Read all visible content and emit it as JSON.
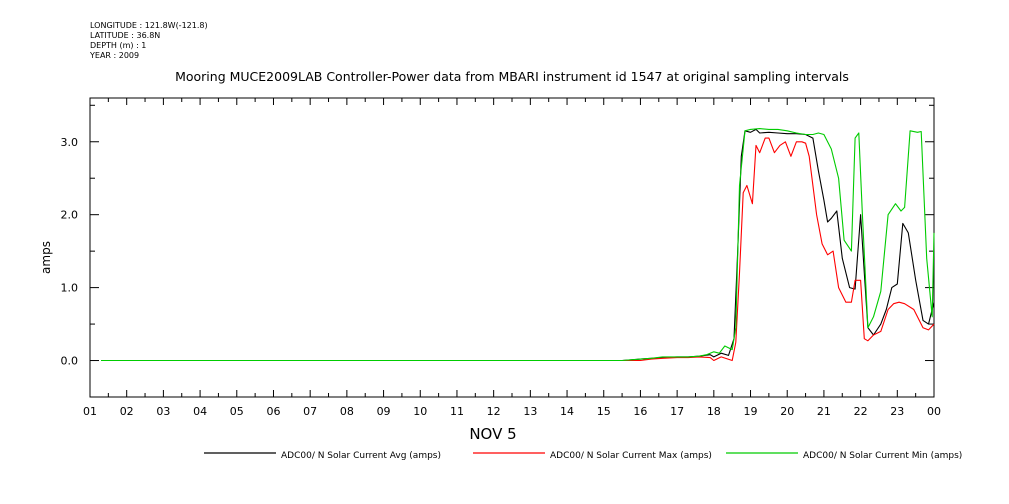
{
  "meta": {
    "longitude": "LONGITUDE : 121.8W(-121.8)",
    "latitude": "LATITUDE : 36.8N",
    "depth": "DEPTH (m) : 1",
    "year": "YEAR : 2009"
  },
  "chart_data": {
    "type": "line",
    "title": "Mooring MUCE2009LAB Controller-Power data from MBARI instrument id 1547 at original sampling intervals",
    "ylabel": "amps",
    "xlabel": "NOV  5",
    "ylim": [
      -0.5,
      3.6
    ],
    "xlim": [
      1,
      24
    ],
    "yticks": [
      0.0,
      1.0,
      2.0,
      3.0
    ],
    "ytick_labels": [
      "0.0",
      "1.0",
      "2.0",
      "3.0"
    ],
    "xtick_labels": [
      "01",
      "02",
      "03",
      "04",
      "05",
      "06",
      "07",
      "08",
      "09",
      "10",
      "11",
      "12",
      "13",
      "14",
      "15",
      "16",
      "17",
      "18",
      "19",
      "20",
      "21",
      "22",
      "23",
      "00"
    ],
    "grid": false,
    "legend_position": "bottom",
    "series": [
      {
        "name": "ADC00/ N Solar Current Avg (amps)",
        "color": "#000000",
        "x": [
          15.5,
          16.0,
          16.3,
          16.6,
          17.0,
          17.3,
          17.6,
          17.9,
          18.0,
          18.2,
          18.4,
          18.55,
          18.65,
          18.75,
          18.85,
          19.0,
          19.15,
          19.25,
          19.5,
          19.75,
          20.0,
          20.25,
          20.5,
          20.7,
          20.85,
          21.0,
          21.1,
          21.2,
          21.35,
          21.5,
          21.7,
          21.85,
          22.0,
          22.1,
          22.2,
          22.35,
          22.55,
          22.7,
          22.85,
          23.0,
          23.15,
          23.3,
          23.5,
          23.7,
          23.85,
          24.0
        ],
        "y": [
          0.0,
          0.02,
          0.03,
          0.04,
          0.05,
          0.05,
          0.06,
          0.08,
          0.05,
          0.1,
          0.07,
          0.3,
          1.5,
          2.8,
          3.15,
          3.13,
          3.17,
          3.12,
          3.13,
          3.12,
          3.11,
          3.11,
          3.1,
          3.05,
          2.6,
          2.2,
          1.9,
          1.95,
          2.05,
          1.4,
          1.0,
          0.98,
          2.0,
          1.2,
          0.45,
          0.35,
          0.5,
          0.7,
          1.0,
          1.05,
          1.88,
          1.75,
          1.1,
          0.55,
          0.5,
          0.8
        ]
      },
      {
        "name": "ADC00/ N Solar Current Max (amps)",
        "color": "#ff0000",
        "x": [
          15.5,
          16.0,
          16.3,
          16.6,
          17.0,
          17.3,
          17.6,
          17.9,
          18.0,
          18.2,
          18.5,
          18.6,
          18.7,
          18.8,
          18.9,
          19.05,
          19.15,
          19.25,
          19.4,
          19.5,
          19.65,
          19.8,
          19.95,
          20.1,
          20.25,
          20.4,
          20.5,
          20.6,
          20.8,
          20.95,
          21.1,
          21.25,
          21.4,
          21.6,
          21.75,
          21.85,
          22.0,
          22.1,
          22.2,
          22.35,
          22.55,
          22.75,
          22.9,
          23.05,
          23.2,
          23.45,
          23.7,
          23.85,
          24.0
        ],
        "y": [
          0.0,
          0.0,
          0.02,
          0.03,
          0.04,
          0.04,
          0.05,
          0.04,
          0.0,
          0.05,
          0.0,
          0.25,
          1.2,
          2.3,
          2.4,
          2.15,
          2.95,
          2.85,
          3.05,
          3.05,
          2.85,
          2.95,
          3.0,
          2.8,
          3.0,
          3.0,
          2.98,
          2.8,
          2.0,
          1.6,
          1.45,
          1.5,
          1.0,
          0.8,
          0.8,
          1.1,
          1.1,
          0.3,
          0.27,
          0.35,
          0.4,
          0.7,
          0.78,
          0.8,
          0.78,
          0.7,
          0.45,
          0.42,
          0.5
        ]
      },
      {
        "name": "ADC00/ N Solar Current Min (amps)",
        "color": "#00cc00",
        "x": [
          1.3,
          15.5,
          16.0,
          16.3,
          16.6,
          17.0,
          17.3,
          17.6,
          17.8,
          18.0,
          18.15,
          18.3,
          18.5,
          18.6,
          18.7,
          18.85,
          19.0,
          19.25,
          19.5,
          19.75,
          20.0,
          20.25,
          20.5,
          20.7,
          20.85,
          21.0,
          21.2,
          21.4,
          21.55,
          21.75,
          21.85,
          21.95,
          22.05,
          22.2,
          22.35,
          22.55,
          22.75,
          22.95,
          23.1,
          23.2,
          23.35,
          23.55,
          23.65,
          23.8,
          23.95,
          24.0
        ],
        "y": [
          0.0,
          0.0,
          0.02,
          0.03,
          0.05,
          0.05,
          0.05,
          0.06,
          0.08,
          0.12,
          0.1,
          0.2,
          0.15,
          0.45,
          2.4,
          3.15,
          3.17,
          3.18,
          3.17,
          3.17,
          3.15,
          3.12,
          3.1,
          3.1,
          3.12,
          3.1,
          2.9,
          2.5,
          1.65,
          1.5,
          3.05,
          3.12,
          2.0,
          0.45,
          0.6,
          0.95,
          2.0,
          2.15,
          2.05,
          2.1,
          3.15,
          3.13,
          3.14,
          1.4,
          0.6,
          1.75
        ]
      }
    ]
  }
}
